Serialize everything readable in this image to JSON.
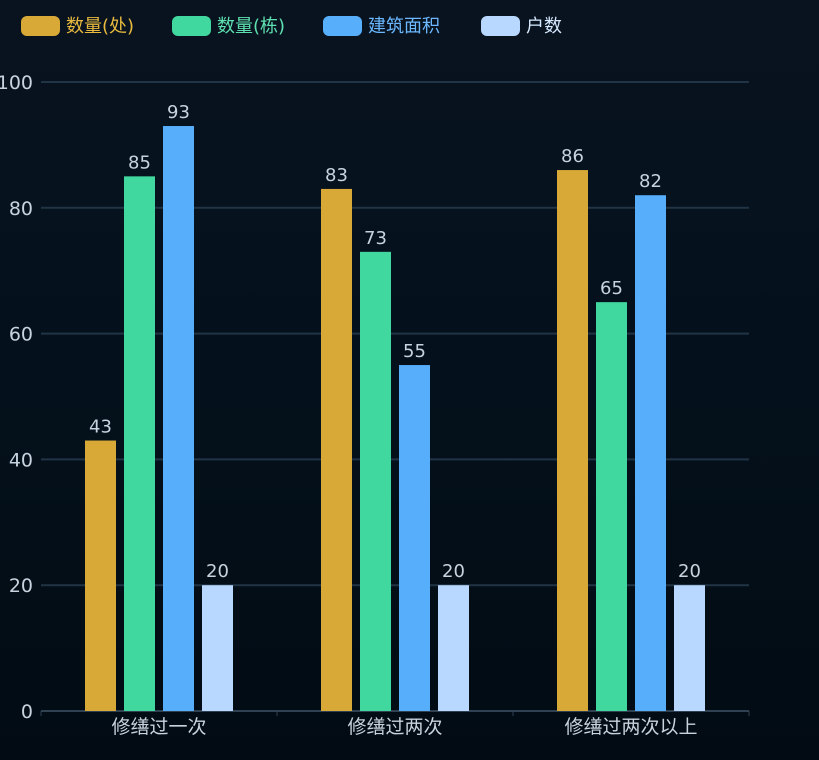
{
  "chart_data": {
    "type": "bar",
    "categories": [
      "修缮过一次",
      "修缮过两次",
      "修缮过两次以上"
    ],
    "series": [
      {
        "name": "数量(处)",
        "values": [
          43,
          83,
          86
        ],
        "color": "#d8a936",
        "legendTextColor": "#e8b93f"
      },
      {
        "name": "数量(栋)",
        "values": [
          85,
          73,
          65
        ],
        "color": "#41d8a0",
        "legendTextColor": "#5ee0b0"
      },
      {
        "name": "建筑面积",
        "values": [
          93,
          55,
          82
        ],
        "color": "#57aefb",
        "legendTextColor": "#6bb8ff"
      },
      {
        "name": "户数",
        "values": [
          20,
          20,
          20
        ],
        "color": "#b8d8ff",
        "legendTextColor": "#d6e9ff"
      }
    ],
    "ylim": [
      0,
      100
    ],
    "yticks": [
      0,
      20,
      40,
      60,
      80,
      100
    ],
    "grid": true,
    "legend": "top-left",
    "data_labels": true
  },
  "colors": {
    "background": "#04111c",
    "grid": "#213445",
    "axis": "#304152",
    "text": "#c7d3df"
  }
}
